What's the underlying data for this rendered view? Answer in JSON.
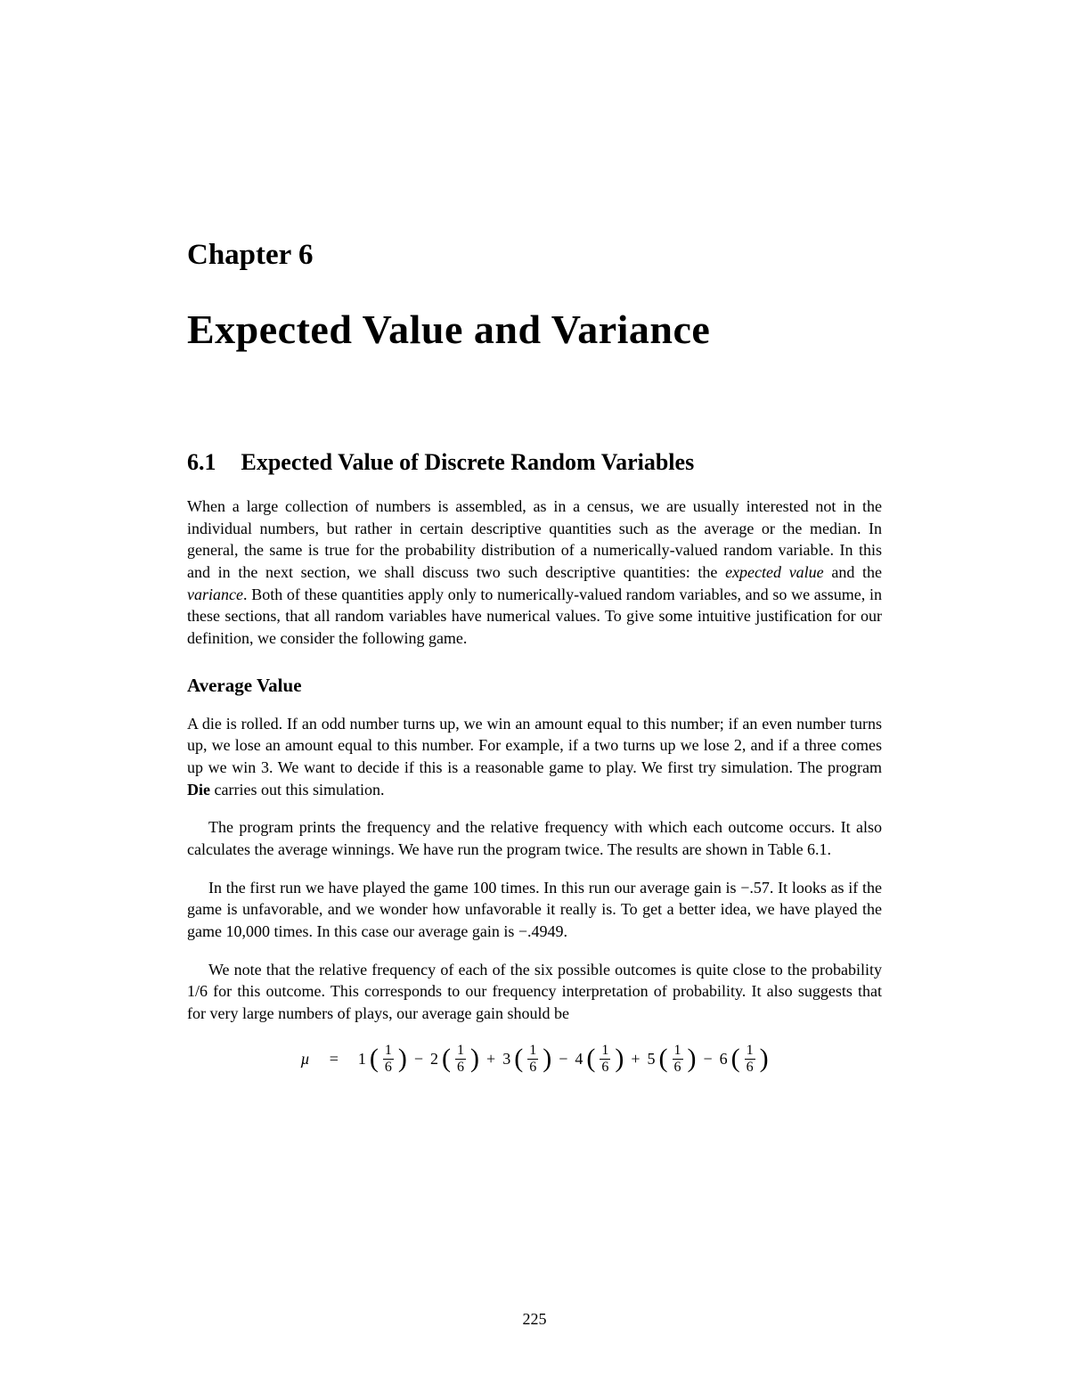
{
  "chapter": {
    "label": "Chapter 6",
    "title": "Expected Value and Variance"
  },
  "section": {
    "number": "6.1",
    "title": "Expected Value of Discrete Random Variables"
  },
  "para1": {
    "a": "When a large collection of numbers is assembled, as in a census, we are usually interested not in the individual numbers, but rather in certain descriptive quantities such as the average or the median. In general, the same is true for the probability distribution of a numerically-valued random variable. In this and in the next section, we shall discuss two such descriptive quantities: the ",
    "i1": "expected value",
    "b": " and the ",
    "i2": "variance",
    "c": ". Both of these quantities apply only to numerically-valued random variables, and so we assume, in these sections, that all random variables have numerical values. To give some intuitive justification for our definition, we consider the following game."
  },
  "subheading1": "Average Value",
  "para2": {
    "a": "A die is rolled. If an odd number turns up, we win an amount equal to this number; if an even number turns up, we lose an amount equal to this number. For example, if a two turns up we lose 2, and if a three comes up we win 3. We want to decide if this is a reasonable game to play. We first try simulation. The program ",
    "b1": "Die",
    "b": " carries out this simulation."
  },
  "para3": "The program prints the frequency and the relative frequency with which each outcome occurs. It also calculates the average winnings. We have run the program twice. The results are shown in Table 6.1.",
  "para4": "In the first run we have played the game 100 times. In this run our average gain is −.57. It looks as if the game is unfavorable, and we wonder how unfavorable it really is. To get a better idea, we have played the game 10,000 times. In this case our average gain is −.4949.",
  "para5": "We note that the relative frequency of each of the six possible outcomes is quite close to the probability 1/6 for this outcome. This corresponds to our frequency interpretation of probability. It also suggests that for very large numbers of plays, our average gain should be",
  "equation": {
    "mu": "µ",
    "eq": "=",
    "terms": [
      {
        "sign": "",
        "coef": "1",
        "num": "1",
        "den": "6"
      },
      {
        "sign": "−",
        "coef": "2",
        "num": "1",
        "den": "6"
      },
      {
        "sign": "+",
        "coef": "3",
        "num": "1",
        "den": "6"
      },
      {
        "sign": "−",
        "coef": "4",
        "num": "1",
        "den": "6"
      },
      {
        "sign": "+",
        "coef": "5",
        "num": "1",
        "den": "6"
      },
      {
        "sign": "−",
        "coef": "6",
        "num": "1",
        "den": "6"
      }
    ]
  },
  "pagenum": "225"
}
